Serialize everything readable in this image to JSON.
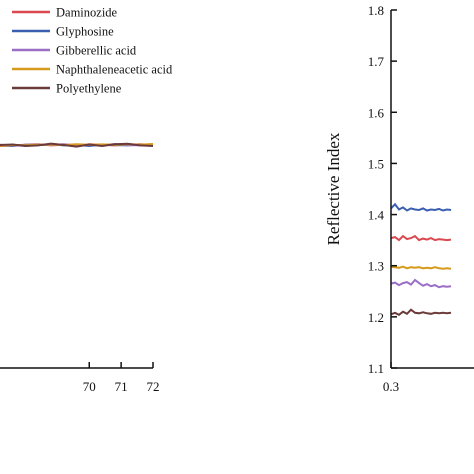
{
  "chart_data": [
    {
      "type": "line",
      "title": "",
      "xlabel": "",
      "ylabel": "",
      "xlim": [
        67.2,
        72
      ],
      "ylim": [
        0,
        1
      ],
      "x_ticks": [
        "70",
        "71",
        "72"
      ],
      "x_tick_values": [
        70,
        71,
        72
      ],
      "legend": {
        "position": "top-left",
        "entries": [
          "Daminozide",
          "Glyphosine",
          "Gibberellic acid",
          "Naphthaleneacetic acid",
          "Polyethylene"
        ]
      },
      "grid": false,
      "series": [
        {
          "name": "Daminozide",
          "color": "#d9494f",
          "x": [
            67.2,
            67.6,
            68,
            68.4,
            68.8,
            69.2,
            69.6,
            70,
            70.4,
            70.8,
            71.2,
            71.6,
            72
          ],
          "y": [
            0.47,
            0.475,
            0.48,
            0.485,
            0.475,
            0.48,
            0.47,
            0.485,
            0.48,
            0.475,
            0.48,
            0.485,
            0.478
          ]
        },
        {
          "name": "Glyphosine",
          "color": "#3a5fb0",
          "x": [
            67.2,
            67.6,
            68,
            68.4,
            68.8,
            69.2,
            69.6,
            70,
            70.4,
            70.8,
            71.2,
            71.6,
            72
          ],
          "y": [
            0.475,
            0.47,
            0.48,
            0.478,
            0.485,
            0.475,
            0.48,
            0.47,
            0.482,
            0.478,
            0.475,
            0.48,
            0.476
          ]
        },
        {
          "name": "Gibberellic acid",
          "color": "#9b6fc6",
          "x": [
            67.2,
            67.6,
            68,
            68.4,
            68.8,
            69.2,
            69.6,
            70,
            70.4,
            70.8,
            71.2,
            71.6,
            72
          ],
          "y": [
            0.48,
            0.475,
            0.472,
            0.482,
            0.478,
            0.485,
            0.476,
            0.48,
            0.474,
            0.486,
            0.478,
            0.475,
            0.48
          ]
        },
        {
          "name": "Naphthaleneacetic acid",
          "color": "#d69a1d",
          "x": [
            67.2,
            67.6,
            68,
            68.4,
            68.8,
            69.2,
            69.6,
            70,
            70.4,
            70.8,
            71.2,
            71.6,
            72
          ],
          "y": [
            0.472,
            0.478,
            0.476,
            0.48,
            0.482,
            0.478,
            0.484,
            0.48,
            0.483,
            0.479,
            0.484,
            0.481,
            0.486
          ]
        },
        {
          "name": "Polyethylene",
          "color": "#6b3a3a",
          "x": [
            67.2,
            67.6,
            68,
            68.4,
            68.8,
            69.2,
            69.6,
            70,
            70.4,
            70.8,
            71.2,
            71.6,
            72
          ],
          "y": [
            0.478,
            0.482,
            0.47,
            0.475,
            0.49,
            0.478,
            0.465,
            0.482,
            0.47,
            0.484,
            0.488,
            0.475,
            0.47
          ]
        }
      ]
    },
    {
      "type": "line",
      "title": "",
      "xlabel": "",
      "ylabel": "Reflective Index",
      "xlim": [
        0.3,
        0.62
      ],
      "ylim": [
        1.1,
        1.8
      ],
      "x_ticks": [
        "0.3"
      ],
      "x_tick_values": [
        0.3
      ],
      "y_ticks": [
        "1.1",
        "1.2",
        "1.3",
        "1.4",
        "1.5",
        "1.6",
        "1.7",
        "1.8"
      ],
      "y_tick_values": [
        1.1,
        1.2,
        1.3,
        1.4,
        1.5,
        1.6,
        1.7,
        1.8
      ],
      "grid": false,
      "series": [
        {
          "name": "Glyphosine",
          "color": "#3a5fb0",
          "x": [
            0.3,
            0.31,
            0.32,
            0.33,
            0.34,
            0.35,
            0.36,
            0.37,
            0.38,
            0.39,
            0.4,
            0.41,
            0.42,
            0.43,
            0.44,
            0.45
          ],
          "y": [
            1.412,
            1.42,
            1.41,
            1.414,
            1.408,
            1.412,
            1.41,
            1.409,
            1.412,
            1.408,
            1.41,
            1.409,
            1.411,
            1.408,
            1.41,
            1.409
          ]
        },
        {
          "name": "Daminozide",
          "color": "#d9494f",
          "x": [
            0.3,
            0.31,
            0.32,
            0.33,
            0.34,
            0.35,
            0.36,
            0.37,
            0.38,
            0.39,
            0.4,
            0.41,
            0.42,
            0.43,
            0.44,
            0.45
          ],
          "y": [
            1.354,
            1.356,
            1.35,
            1.358,
            1.352,
            1.354,
            1.358,
            1.35,
            1.353,
            1.351,
            1.354,
            1.35,
            1.352,
            1.351,
            1.35,
            1.351
          ]
        },
        {
          "name": "Naphthaleneacetic acid",
          "color": "#d69a1d",
          "x": [
            0.3,
            0.31,
            0.32,
            0.33,
            0.34,
            0.35,
            0.36,
            0.37,
            0.38,
            0.39,
            0.4,
            0.41,
            0.42,
            0.43,
            0.44,
            0.45
          ],
          "y": [
            1.298,
            1.297,
            1.296,
            1.298,
            1.295,
            1.297,
            1.296,
            1.297,
            1.295,
            1.296,
            1.295,
            1.297,
            1.295,
            1.294,
            1.295,
            1.294
          ]
        },
        {
          "name": "Gibberellic acid",
          "color": "#9b6fc6",
          "x": [
            0.3,
            0.31,
            0.32,
            0.33,
            0.34,
            0.35,
            0.36,
            0.37,
            0.38,
            0.39,
            0.4,
            0.41,
            0.42,
            0.43,
            0.44,
            0.45
          ],
          "y": [
            1.265,
            1.267,
            1.262,
            1.266,
            1.268,
            1.263,
            1.272,
            1.266,
            1.261,
            1.264,
            1.26,
            1.262,
            1.258,
            1.26,
            1.259,
            1.26
          ]
        },
        {
          "name": "Polyethylene",
          "color": "#6b3a3a",
          "x": [
            0.3,
            0.31,
            0.32,
            0.33,
            0.34,
            0.35,
            0.36,
            0.37,
            0.38,
            0.39,
            0.4,
            0.41,
            0.42,
            0.43,
            0.44,
            0.45
          ],
          "y": [
            1.205,
            1.208,
            1.204,
            1.21,
            1.206,
            1.214,
            1.208,
            1.207,
            1.209,
            1.207,
            1.206,
            1.208,
            1.207,
            1.208,
            1.207,
            1.208
          ]
        }
      ]
    }
  ]
}
